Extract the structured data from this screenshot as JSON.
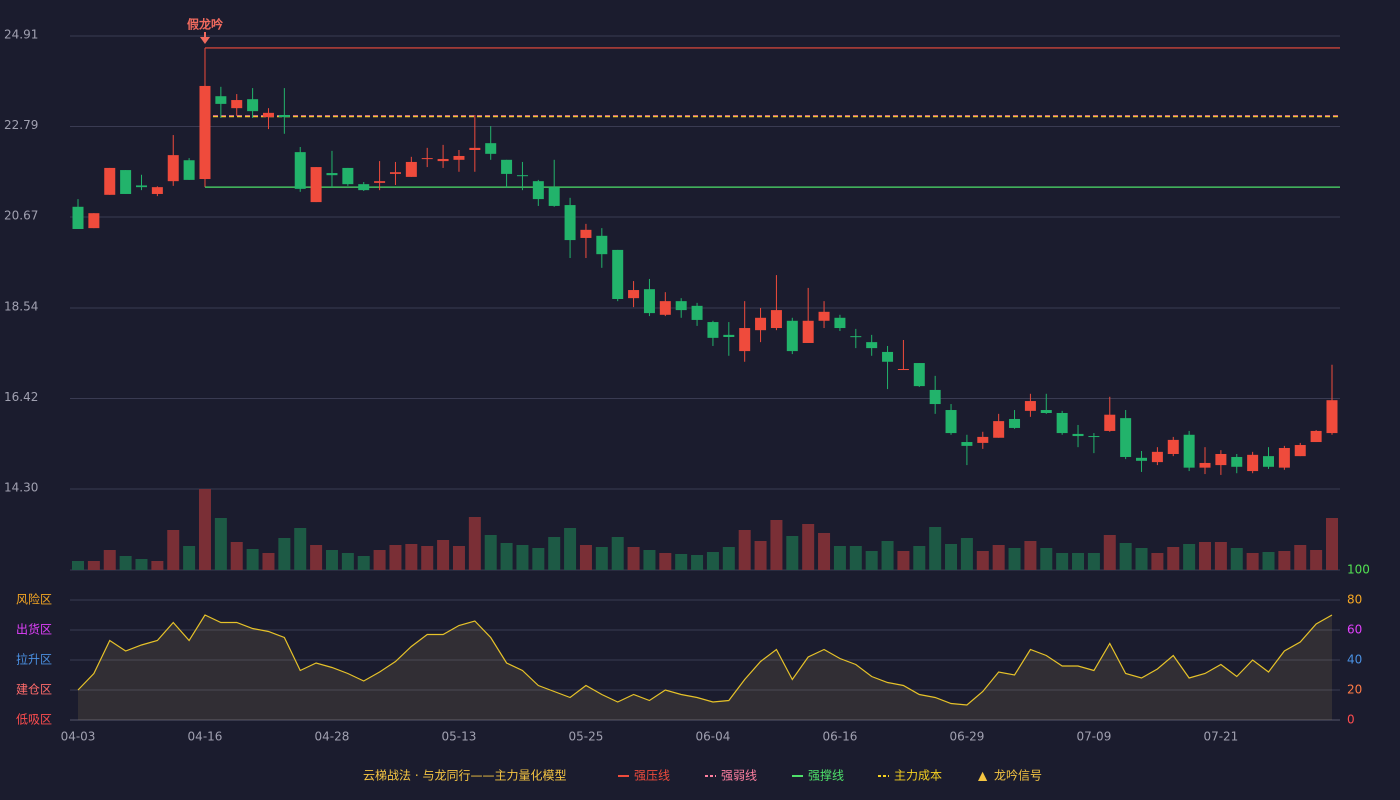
{
  "chart_data": {
    "type": "candlestick",
    "categories": [
      "04-03",
      null,
      null,
      null,
      null,
      null,
      null,
      null,
      "04-16",
      null,
      null,
      null,
      null,
      null,
      null,
      null,
      "04-28",
      null,
      null,
      null,
      null,
      null,
      null,
      null,
      "05-13",
      null,
      null,
      null,
      null,
      null,
      null,
      null,
      "05-25",
      null,
      null,
      null,
      null,
      null,
      null,
      null,
      "06-04",
      null,
      null,
      null,
      null,
      null,
      null,
      null,
      "06-16",
      null,
      null,
      null,
      null,
      null,
      null,
      null,
      "06-29",
      null,
      null,
      null,
      null,
      null,
      null,
      null,
      "07-09",
      null,
      null,
      null,
      null,
      null,
      null,
      null,
      "07-21",
      null,
      null,
      null,
      null,
      null,
      null,
      null
    ],
    "open": [
      20.91,
      20.41,
      21.19,
      21.77,
      21.41,
      21.21,
      21.51,
      22.0,
      21.56,
      23.5,
      23.22,
      23.43,
      23.01,
      23.06,
      22.19,
      21.02,
      21.7,
      21.82,
      21.44,
      21.47,
      21.68,
      21.61,
      22.03,
      21.98,
      22.01,
      22.24,
      22.4,
      22.01,
      21.65,
      21.51,
      21.37,
      20.95,
      20.18,
      20.23,
      19.9,
      18.77,
      18.98,
      18.38,
      18.7,
      18.59,
      18.21,
      17.91,
      17.53,
      18.02,
      18.07,
      18.24,
      17.72,
      18.24,
      18.31,
      17.88,
      17.74,
      17.51,
      17.09,
      17.25,
      16.62,
      16.15,
      15.4,
      15.38,
      15.5,
      15.94,
      16.13,
      16.15,
      16.08,
      15.59,
      15.54,
      15.66,
      15.96,
      15.03,
      14.93,
      15.12,
      15.57,
      14.8,
      14.86,
      15.05,
      14.72,
      15.07,
      14.8,
      15.07,
      15.4,
      15.61
    ],
    "close": [
      20.39,
      20.76,
      21.82,
      21.21,
      21.37,
      21.37,
      22.12,
      21.54,
      23.74,
      23.32,
      23.41,
      23.15,
      23.11,
      23.01,
      21.33,
      21.84,
      21.65,
      21.44,
      21.3,
      21.51,
      21.72,
      21.96,
      22.05,
      22.03,
      22.1,
      22.29,
      22.15,
      21.68,
      21.63,
      21.09,
      20.93,
      20.13,
      20.37,
      19.8,
      18.75,
      18.96,
      18.42,
      18.7,
      18.49,
      18.26,
      17.84,
      17.86,
      18.07,
      18.31,
      18.49,
      17.53,
      18.24,
      18.45,
      18.07,
      17.86,
      17.6,
      17.28,
      17.11,
      16.71,
      16.29,
      15.61,
      15.31,
      15.52,
      15.89,
      15.73,
      16.36,
      16.08,
      15.61,
      15.54,
      15.52,
      16.04,
      15.05,
      14.96,
      15.17,
      15.45,
      14.8,
      14.91,
      15.12,
      14.82,
      15.1,
      14.82,
      15.26,
      15.33,
      15.66,
      16.38
    ],
    "high": [
      21.09,
      20.76,
      21.82,
      21.77,
      21.66,
      21.39,
      22.59,
      22.05,
      23.74,
      23.72,
      23.55,
      23.69,
      23.22,
      23.69,
      22.31,
      21.84,
      22.22,
      21.82,
      21.49,
      21.98,
      21.96,
      22.08,
      22.29,
      22.36,
      22.24,
      23.06,
      22.8,
      22.01,
      21.96,
      21.54,
      22.01,
      21.12,
      20.51,
      20.41,
      19.9,
      19.17,
      19.22,
      18.91,
      18.77,
      18.66,
      18.24,
      18.21,
      18.7,
      18.54,
      19.31,
      18.31,
      19.01,
      18.7,
      18.38,
      18.05,
      17.91,
      17.65,
      17.79,
      17.25,
      16.95,
      16.29,
      15.57,
      15.64,
      16.06,
      16.15,
      16.53,
      16.53,
      16.13,
      15.8,
      15.61,
      16.46,
      16.15,
      15.19,
      15.28,
      15.52,
      15.66,
      15.28,
      15.21,
      15.12,
      15.17,
      15.28,
      15.31,
      15.38,
      15.68,
      17.21
    ],
    "low": [
      20.39,
      20.41,
      21.19,
      21.21,
      21.3,
      21.16,
      21.4,
      21.54,
      21.54,
      22.99,
      23.04,
      22.99,
      22.73,
      22.62,
      21.26,
      21.02,
      21.35,
      21.4,
      21.28,
      21.3,
      21.42,
      21.61,
      21.84,
      21.82,
      21.73,
      21.73,
      22.01,
      21.35,
      21.3,
      20.93,
      20.91,
      19.71,
      19.71,
      19.48,
      18.7,
      18.56,
      18.35,
      18.35,
      18.31,
      18.12,
      17.65,
      17.42,
      17.28,
      17.74,
      18.02,
      17.46,
      17.72,
      18.07,
      18.0,
      17.6,
      17.42,
      16.64,
      17.09,
      16.69,
      16.06,
      15.57,
      14.86,
      15.24,
      15.5,
      15.71,
      15.99,
      16.06,
      15.57,
      15.28,
      15.14,
      15.64,
      15.0,
      14.7,
      14.86,
      15.07,
      14.72,
      14.65,
      14.63,
      14.67,
      14.67,
      14.77,
      14.75,
      15.07,
      15.4,
      15.57
    ],
    "volume": [
      9,
      9,
      20,
      14,
      11,
      9,
      40,
      24,
      81,
      52,
      28,
      21,
      17,
      32,
      42,
      25,
      20,
      17,
      14,
      20,
      25,
      26,
      24,
      30,
      24,
      53,
      35,
      27,
      25,
      22,
      33,
      42,
      25,
      23,
      33,
      23,
      20,
      17,
      16,
      15,
      18,
      23,
      40,
      29,
      50,
      34,
      46,
      37,
      24,
      24,
      19,
      29,
      19,
      24,
      43,
      26,
      32,
      19,
      25,
      22,
      29,
      22,
      17,
      17,
      17,
      35,
      27,
      22,
      17,
      23,
      26,
      28,
      28,
      22,
      17,
      18,
      19,
      25,
      20,
      52
    ],
    "indicator": [
      20,
      31,
      53,
      46,
      50,
      53,
      65,
      53,
      70,
      65,
      65,
      61,
      59,
      55,
      33,
      38,
      35,
      31,
      26,
      32,
      39,
      49,
      57,
      57,
      63,
      66,
      55,
      38,
      33,
      23,
      19,
      15,
      23,
      17,
      12,
      17,
      13,
      20,
      17,
      15,
      12,
      13,
      27,
      39,
      47,
      27,
      42,
      47,
      41,
      37,
      29,
      25,
      23,
      17,
      15,
      11,
      10,
      19,
      32,
      30,
      47,
      43,
      36,
      36,
      33,
      51,
      31,
      28,
      34,
      43,
      28,
      31,
      37,
      29,
      40,
      32,
      46,
      52,
      64,
      70
    ],
    "up_color": "#ef4b3c",
    "down_color": "#22b36b",
    "volume_up_color": "#7a2f36",
    "volume_down_color": "#1d5a45",
    "indicator_color": "#e6c229",
    "ylim": [
      14.3,
      24.91
    ],
    "yticks": [
      {
        "value": 14.3,
        "label": "14.30"
      },
      16.42,
      18.54,
      20.67,
      22.79,
      24.91
    ],
    "volume_lim": [
      0,
      81
    ],
    "indicator_lim": [
      0,
      100
    ],
    "indicator_ticks": [
      0,
      20,
      40,
      60,
      80,
      100
    ],
    "indicator_tick_colors": [
      "#ff4d4f",
      "#ff7a45",
      "#4a90e2",
      "#e040fb",
      "#f5a623",
      "#52e052"
    ],
    "zones": [
      {
        "label": "低吸区",
        "value": 0,
        "color": "#ff4d4f"
      },
      {
        "label": "建仓区",
        "value": 20,
        "color": "#ff6b6b"
      },
      {
        "label": "拉升区",
        "value": 40,
        "color": "#4a90e2"
      },
      {
        "label": "出货区",
        "value": 60,
        "color": "#e040fb"
      },
      {
        "label": "风险区",
        "value": 80,
        "color": "#f5a623"
      }
    ],
    "annotation": {
      "text": "假龙吟",
      "category": "04-16",
      "color": "#f06a5e"
    },
    "lines": [
      {
        "name": "强压线",
        "value": 24.63,
        "color": "#ef4b3c",
        "dashed": false
      },
      {
        "name": "强弱线",
        "value": 23.04,
        "color": "#ff7fa0",
        "dashed": true
      },
      {
        "name": "强撑线",
        "value": 21.37,
        "color": "#4ee06a",
        "dashed": false
      },
      {
        "name": "主力成本",
        "value": 23.02,
        "color": "#f5d020",
        "dashed": true
      }
    ],
    "legend_title": "云梯战法 · 与龙同行——主力量化模型",
    "signal": {
      "name": "龙吟信号",
      "marker": "▲",
      "color": "#f5c542"
    }
  }
}
